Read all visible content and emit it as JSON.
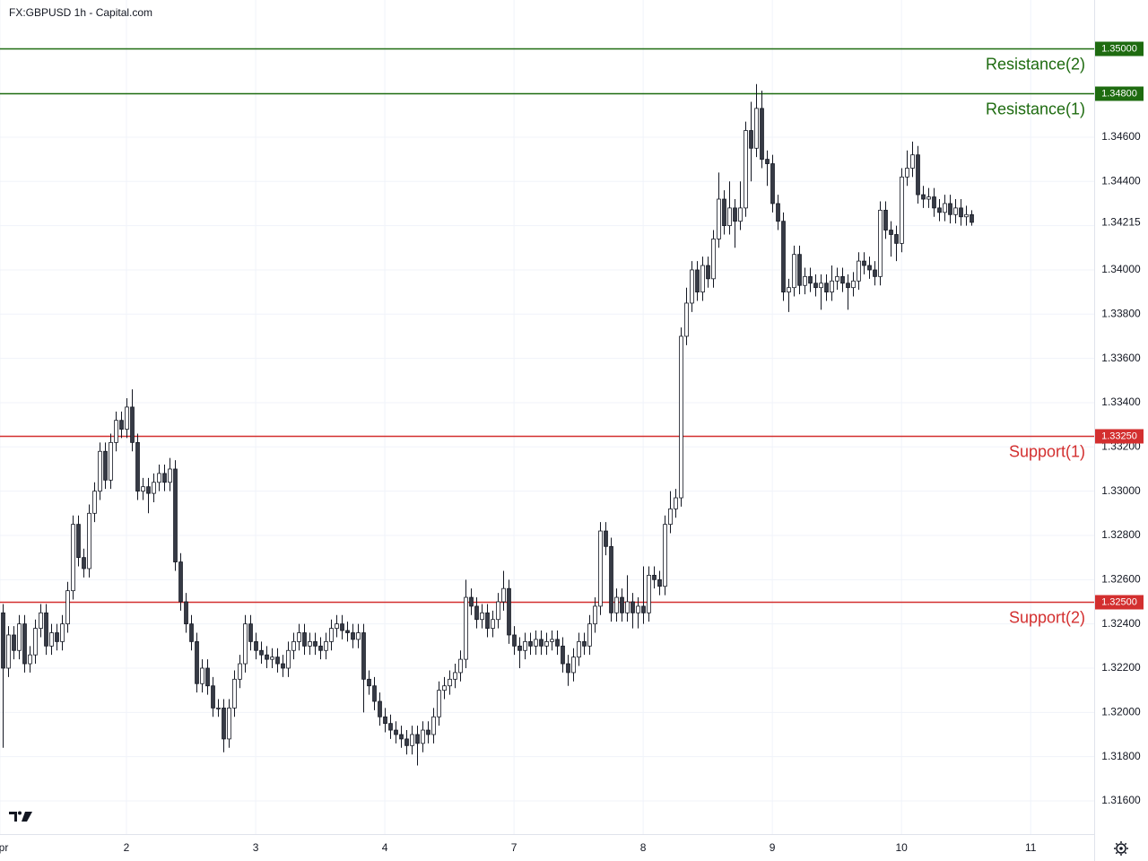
{
  "chart_data": {
    "type": "candlestick",
    "title": "FX:GBPUSD 1h - Capital.com",
    "up_color": "#ffffff",
    "down_color": "#363a45",
    "border_color": "#131722",
    "grid": true,
    "xlim": [
      -0.5,
      202.8
    ],
    "xticks": [
      {
        "value": -0.5,
        "label": "Apr"
      },
      {
        "value": 23,
        "label": "2"
      },
      {
        "value": 47,
        "label": "3"
      },
      {
        "value": 71,
        "label": "4"
      },
      {
        "value": 95,
        "label": "7"
      },
      {
        "value": 119,
        "label": "8"
      },
      {
        "value": 143,
        "label": "9"
      },
      {
        "value": 167,
        "label": "10"
      },
      {
        "value": 191,
        "label": "11"
      }
    ],
    "ylim": [
      1.3145,
      1.3522
    ],
    "yticks": [
      {
        "value": 1.316,
        "label": "1.31600"
      },
      {
        "value": 1.318,
        "label": "1.31800"
      },
      {
        "value": 1.32,
        "label": "1.32000"
      },
      {
        "value": 1.322,
        "label": "1.32200"
      },
      {
        "value": 1.324,
        "label": "1.32400"
      },
      {
        "value": 1.326,
        "label": "1.32600"
      },
      {
        "value": 1.328,
        "label": "1.32800"
      },
      {
        "value": 1.33,
        "label": "1.33000"
      },
      {
        "value": 1.332,
        "label": "1.33200"
      },
      {
        "value": 1.334,
        "label": "1.33400"
      },
      {
        "value": 1.336,
        "label": "1.33600"
      },
      {
        "value": 1.338,
        "label": "1.33800"
      },
      {
        "value": 1.34,
        "label": "1.34000"
      },
      {
        "value": 1.342,
        "label": "1.34200"
      },
      {
        "value": 1.344,
        "label": "1.34400"
      },
      {
        "value": 1.346,
        "label": "1.34600"
      }
    ],
    "levels": [
      {
        "name": "Resistance(2)",
        "value": 1.35,
        "label": "1.35000",
        "color": "#1e6b10"
      },
      {
        "name": "Resistance(1)",
        "value": 1.348,
        "label": "1.34800",
        "color": "#1e6b10"
      },
      {
        "name": "Support(1)",
        "value": 1.3325,
        "label": "1.33250",
        "color": "#d32f2f"
      },
      {
        "name": "Support(2)",
        "value": 1.325,
        "label": "1.32500",
        "color": "#d32f2f"
      }
    ],
    "last_price": {
      "value": 1.34215,
      "label": "1.34215"
    },
    "open": [
      1.3245,
      1.322,
      1.3235,
      1.3228,
      1.324,
      1.3222,
      1.3226,
      1.3238,
      1.3245,
      1.323,
      1.3236,
      1.3232,
      1.324,
      1.3255,
      1.3285,
      1.327,
      1.3265,
      1.329,
      1.33,
      1.3318,
      1.3305,
      1.3322,
      1.3332,
      1.3328,
      1.3338,
      1.3322,
      1.33,
      1.3302,
      1.3299,
      1.3304,
      1.3308,
      1.3304,
      1.331,
      1.3268,
      1.325,
      1.324,
      1.3232,
      1.3213,
      1.322,
      1.3212,
      1.3202,
      1.3202,
      1.3188,
      1.3202,
      1.3215,
      1.3222,
      1.324,
      1.3232,
      1.3228,
      1.3226,
      1.3224,
      1.3225,
      1.3222,
      1.322,
      1.3228,
      1.3232,
      1.3236,
      1.323,
      1.3232,
      1.323,
      1.3228,
      1.3232,
      1.3238,
      1.324,
      1.3237,
      1.3236,
      1.3233,
      1.3236,
      1.3215,
      1.3212,
      1.3205,
      1.3198,
      1.3195,
      1.3192,
      1.319,
      1.3188,
      1.3185,
      1.319,
      1.3186,
      1.3192,
      1.319,
      1.3198,
      1.321,
      1.3212,
      1.3215,
      1.3218,
      1.3224,
      1.3252,
      1.3248,
      1.3242,
      1.3245,
      1.3238,
      1.3242,
      1.325,
      1.3256,
      1.3235,
      1.323,
      1.3228,
      1.3232,
      1.323,
      1.3233,
      1.323,
      1.3232,
      1.3233,
      1.323,
      1.3222,
      1.3218,
      1.3225,
      1.3232,
      1.323,
      1.324,
      1.3248,
      1.3282,
      1.3275,
      1.3245,
      1.3252,
      1.3245,
      1.325,
      1.3245,
      1.3248,
      1.3245,
      1.3262,
      1.326,
      1.3257,
      1.3285,
      1.3292,
      1.3297,
      1.337,
      1.3385,
      1.34,
      1.339,
      1.3402,
      1.3396,
      1.3414,
      1.3432,
      1.342,
      1.3428,
      1.3422,
      1.3428,
      1.3463,
      1.3455,
      1.3473,
      1.345,
      1.3448,
      1.343,
      1.3422,
      1.339,
      1.3392,
      1.3407,
      1.3393,
      1.3397,
      1.3394,
      1.3392,
      1.3394,
      1.339,
      1.3395,
      1.3397,
      1.3394,
      1.3392,
      1.3395,
      1.3404,
      1.3402,
      1.34,
      1.3397,
      1.3427,
      1.3418,
      1.3416,
      1.3412,
      1.3442,
      1.3446,
      1.3452,
      1.3434,
      1.3432,
      1.3433,
      1.3428,
      1.3426,
      1.343,
      1.3425,
      1.3428,
      1.3424,
      1.3425
    ],
    "high": [
      1.3249,
      1.3239,
      1.3239,
      1.3244,
      1.3244,
      1.323,
      1.3242,
      1.3249,
      1.3249,
      1.324,
      1.324,
      1.3244,
      1.3259,
      1.3289,
      1.3289,
      1.3274,
      1.3294,
      1.3304,
      1.3322,
      1.3322,
      1.3326,
      1.3336,
      1.3336,
      1.3342,
      1.3346,
      1.3326,
      1.3306,
      1.3306,
      1.3308,
      1.3312,
      1.3312,
      1.3315,
      1.3314,
      1.3272,
      1.3254,
      1.3244,
      1.3236,
      1.3224,
      1.3224,
      1.3216,
      1.3206,
      1.3206,
      1.3206,
      1.3219,
      1.3226,
      1.3244,
      1.3244,
      1.3236,
      1.3232,
      1.323,
      1.3229,
      1.3229,
      1.3226,
      1.3232,
      1.3236,
      1.324,
      1.324,
      1.3236,
      1.3236,
      1.3234,
      1.3236,
      1.3242,
      1.3244,
      1.3244,
      1.3241,
      1.324,
      1.324,
      1.324,
      1.3219,
      1.3216,
      1.3209,
      1.3202,
      1.3199,
      1.3196,
      1.3194,
      1.3192,
      1.3194,
      1.3194,
      1.3196,
      1.3196,
      1.3202,
      1.3214,
      1.3216,
      1.3219,
      1.3222,
      1.3228,
      1.326,
      1.3256,
      1.3252,
      1.3249,
      1.3249,
      1.3246,
      1.3254,
      1.3264,
      1.326,
      1.3239,
      1.3234,
      1.3236,
      1.3236,
      1.3237,
      1.3237,
      1.3236,
      1.3237,
      1.3237,
      1.3234,
      1.3226,
      1.3229,
      1.3236,
      1.3236,
      1.3244,
      1.3252,
      1.3286,
      1.3286,
      1.3279,
      1.3256,
      1.3256,
      1.3262,
      1.3254,
      1.3252,
      1.3266,
      1.3266,
      1.3266,
      1.3264,
      1.3289,
      1.33,
      1.3301,
      1.3374,
      1.3392,
      1.3404,
      1.3404,
      1.3406,
      1.3406,
      1.3418,
      1.3444,
      1.3436,
      1.344,
      1.3432,
      1.344,
      1.3467,
      1.3476,
      1.3484,
      1.3481,
      1.3454,
      1.3452,
      1.3434,
      1.3426,
      1.3396,
      1.3411,
      1.3411,
      1.3401,
      1.3401,
      1.3398,
      1.3398,
      1.3398,
      1.3402,
      1.3401,
      1.3401,
      1.3398,
      1.3399,
      1.3408,
      1.3408,
      1.3406,
      1.3404,
      1.3431,
      1.3431,
      1.3422,
      1.342,
      1.3446,
      1.3454,
      1.3458,
      1.3456,
      1.3438,
      1.3437,
      1.3437,
      1.3432,
      1.3434,
      1.3434,
      1.3432,
      1.3432,
      1.3429,
      1.3427
    ],
    "low": [
      1.3184,
      1.3216,
      1.3224,
      1.3224,
      1.3218,
      1.3218,
      1.3222,
      1.3234,
      1.3226,
      1.3226,
      1.3228,
      1.3228,
      1.3236,
      1.3251,
      1.3266,
      1.3261,
      1.3261,
      1.3286,
      1.3296,
      1.3301,
      1.3301,
      1.3318,
      1.3324,
      1.3324,
      1.3318,
      1.3296,
      1.3296,
      1.329,
      1.3295,
      1.33,
      1.33,
      1.33,
      1.3264,
      1.3246,
      1.3236,
      1.3228,
      1.3209,
      1.3209,
      1.3208,
      1.3198,
      1.3198,
      1.3182,
      1.3184,
      1.3198,
      1.3211,
      1.3218,
      1.3228,
      1.3224,
      1.3222,
      1.322,
      1.322,
      1.3218,
      1.3216,
      1.3216,
      1.3224,
      1.3228,
      1.3226,
      1.3226,
      1.3226,
      1.3224,
      1.3224,
      1.3228,
      1.3234,
      1.3233,
      1.3232,
      1.3229,
      1.3229,
      1.32,
      1.3208,
      1.3201,
      1.3194,
      1.3191,
      1.3188,
      1.3186,
      1.3184,
      1.3181,
      1.3181,
      1.3176,
      1.3182,
      1.3186,
      1.3186,
      1.3194,
      1.3206,
      1.3208,
      1.3211,
      1.3214,
      1.322,
      1.3244,
      1.3238,
      1.3238,
      1.3234,
      1.3234,
      1.3238,
      1.3246,
      1.3231,
      1.3226,
      1.322,
      1.3224,
      1.3226,
      1.3226,
      1.3226,
      1.3226,
      1.3228,
      1.3226,
      1.3218,
      1.3212,
      1.3214,
      1.3221,
      1.3226,
      1.3226,
      1.3236,
      1.3244,
      1.3271,
      1.3241,
      1.3241,
      1.3241,
      1.3241,
      1.3238,
      1.3238,
      1.324,
      1.3241,
      1.3256,
      1.3253,
      1.3253,
      1.3281,
      1.3288,
      1.3293,
      1.3366,
      1.3381,
      1.3386,
      1.3386,
      1.3392,
      1.3392,
      1.341,
      1.3416,
      1.3416,
      1.341,
      1.3418,
      1.3424,
      1.344,
      1.3451,
      1.3446,
      1.3438,
      1.3426,
      1.3418,
      1.3386,
      1.3381,
      1.3388,
      1.3389,
      1.3389,
      1.339,
      1.3388,
      1.3382,
      1.3386,
      1.3386,
      1.3391,
      1.339,
      1.3382,
      1.3388,
      1.3391,
      1.3398,
      1.3396,
      1.3393,
      1.3393,
      1.3414,
      1.3406,
      1.3404,
      1.3408,
      1.3438,
      1.3442,
      1.343,
      1.3428,
      1.3428,
      1.3424,
      1.3422,
      1.3422,
      1.3421,
      1.3421,
      1.342,
      1.342,
      1.342
    ],
    "close": [
      1.322,
      1.3235,
      1.3228,
      1.324,
      1.3222,
      1.3226,
      1.3238,
      1.3245,
      1.323,
      1.3236,
      1.3232,
      1.324,
      1.3255,
      1.3285,
      1.327,
      1.3265,
      1.329,
      1.33,
      1.3318,
      1.3305,
      1.3322,
      1.3332,
      1.3328,
      1.3338,
      1.3322,
      1.33,
      1.3302,
      1.3299,
      1.3304,
      1.3308,
      1.3304,
      1.331,
      1.3268,
      1.325,
      1.324,
      1.3232,
      1.3213,
      1.322,
      1.3212,
      1.3202,
      1.3202,
      1.3188,
      1.3202,
      1.3215,
      1.3222,
      1.324,
      1.3232,
      1.3228,
      1.3226,
      1.3224,
      1.3225,
      1.3222,
      1.322,
      1.3228,
      1.3232,
      1.3236,
      1.323,
      1.3232,
      1.323,
      1.3228,
      1.3232,
      1.3238,
      1.324,
      1.3237,
      1.3236,
      1.3233,
      1.3236,
      1.3215,
      1.3212,
      1.3205,
      1.3198,
      1.3195,
      1.3192,
      1.319,
      1.3188,
      1.3185,
      1.319,
      1.3186,
      1.3192,
      1.319,
      1.3198,
      1.321,
      1.3212,
      1.3215,
      1.3218,
      1.3224,
      1.3252,
      1.3248,
      1.3242,
      1.3245,
      1.3238,
      1.3242,
      1.325,
      1.3256,
      1.3235,
      1.323,
      1.3228,
      1.3232,
      1.323,
      1.3233,
      1.323,
      1.3232,
      1.3233,
      1.323,
      1.3222,
      1.3218,
      1.3225,
      1.3232,
      1.323,
      1.324,
      1.3248,
      1.3282,
      1.3275,
      1.3245,
      1.3252,
      1.3245,
      1.325,
      1.3245,
      1.3248,
      1.3245,
      1.3262,
      1.326,
      1.3257,
      1.3285,
      1.3292,
      1.3297,
      1.337,
      1.3385,
      1.34,
      1.339,
      1.3402,
      1.3396,
      1.3414,
      1.3432,
      1.342,
      1.3428,
      1.3422,
      1.3428,
      1.3463,
      1.3455,
      1.3473,
      1.345,
      1.3448,
      1.343,
      1.3422,
      1.339,
      1.3392,
      1.3407,
      1.3393,
      1.3397,
      1.3394,
      1.3392,
      1.3394,
      1.339,
      1.3395,
      1.3397,
      1.3394,
      1.3392,
      1.3395,
      1.3404,
      1.3402,
      1.34,
      1.3397,
      1.3427,
      1.3418,
      1.3416,
      1.3412,
      1.3442,
      1.3446,
      1.3452,
      1.3434,
      1.3432,
      1.3433,
      1.3428,
      1.3426,
      1.343,
      1.3425,
      1.3428,
      1.3424,
      1.3425,
      1.34215
    ]
  }
}
